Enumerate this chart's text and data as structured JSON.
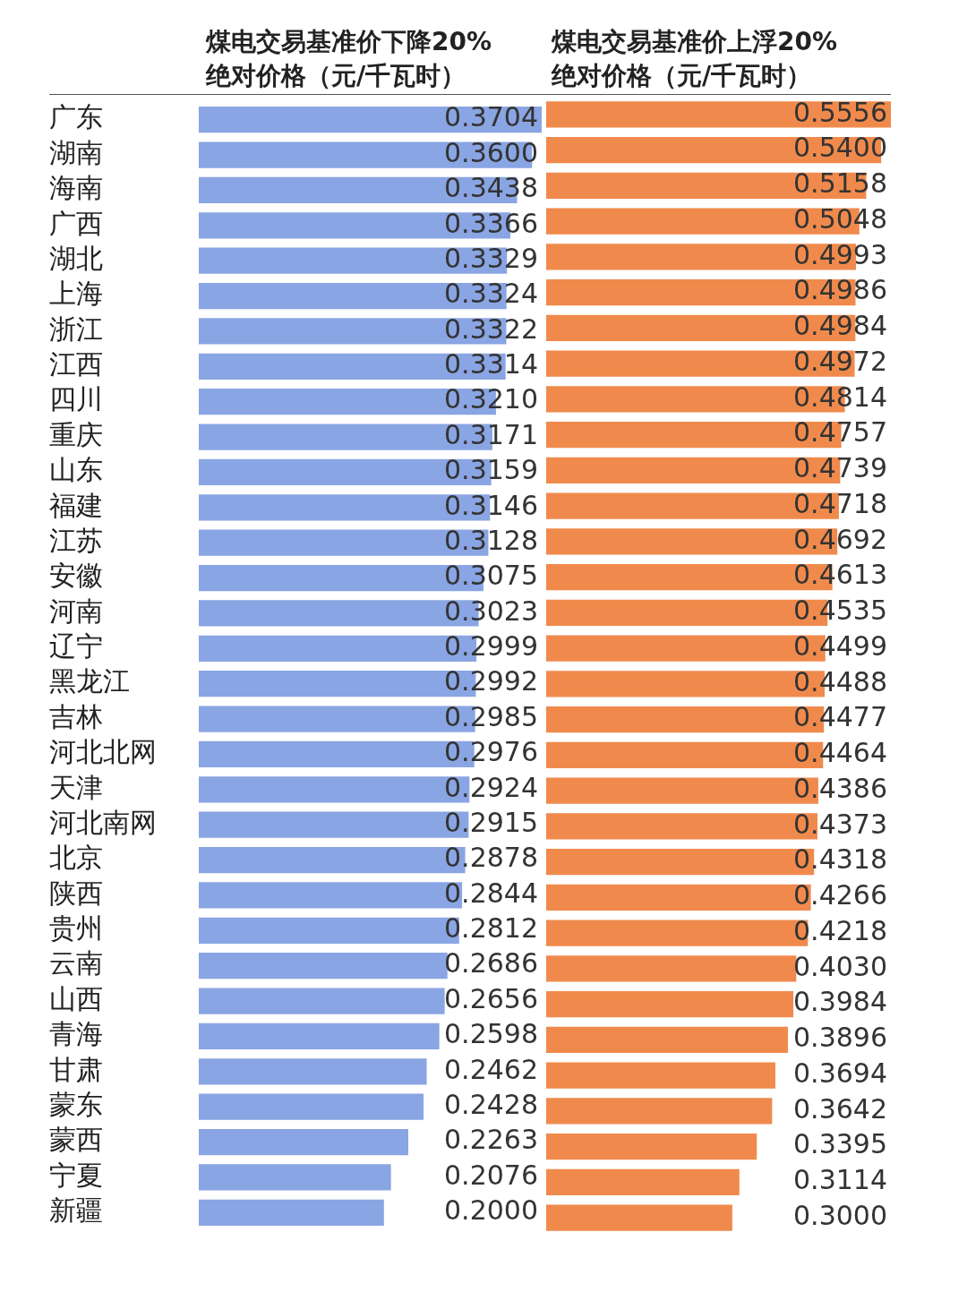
{
  "chart_data": [
    {
      "type": "bar",
      "orientation": "horizontal",
      "title": "煤电交易基准价下降20%\n绝对价格（元/千瓦时）",
      "color": "#8aa5e3",
      "categories": [
        "广东",
        "湖南",
        "海南",
        "广西",
        "湖北",
        "上海",
        "浙江",
        "江西",
        "四川",
        "重庆",
        "山东",
        "福建",
        "江苏",
        "安徽",
        "河南",
        "辽宁",
        "黑龙江",
        "吉林",
        "河北北网",
        "天津",
        "河北南网",
        "北京",
        "陕西",
        "贵州",
        "云南",
        "山西",
        "青海",
        "甘肃",
        "蒙东",
        "蒙西",
        "宁夏",
        "新疆"
      ],
      "values": [
        0.3704,
        0.36,
        0.3438,
        0.3366,
        0.3329,
        0.3324,
        0.3322,
        0.3314,
        0.321,
        0.3171,
        0.3159,
        0.3146,
        0.3128,
        0.3075,
        0.3023,
        0.2999,
        0.2992,
        0.2985,
        0.2976,
        0.2924,
        0.2915,
        0.2878,
        0.2844,
        0.2812,
        0.2686,
        0.2656,
        0.2598,
        0.2462,
        0.2428,
        0.2263,
        0.2076,
        0.2
      ],
      "value_labels": [
        "0.3704",
        "0.3600",
        "0.3438",
        "0.3366",
        "0.3329",
        "0.3324",
        "0.3322",
        "0.3314",
        "0.3210",
        "0.3171",
        "0.3159",
        "0.3146",
        "0.3128",
        "0.3075",
        "0.3023",
        "0.2999",
        "0.2992",
        "0.2985",
        "0.2976",
        "0.2924",
        "0.2915",
        "0.2878",
        "0.2844",
        "0.2812",
        "0.2686",
        "0.2656",
        "0.2598",
        "0.2462",
        "0.2428",
        "0.2263",
        "0.2076",
        "0.2000"
      ]
    },
    {
      "type": "bar",
      "orientation": "horizontal",
      "title": "煤电交易基准价上浮20%\n绝对价格（元/千瓦时）",
      "color": "#f08a4c",
      "tick_labels": false,
      "values": [
        0.5556,
        0.54,
        0.5158,
        0.5048,
        0.4993,
        0.4986,
        0.4984,
        0.4972,
        0.4814,
        0.4757,
        0.4739,
        0.4718,
        0.4692,
        0.4613,
        0.4535,
        0.4499,
        0.4488,
        0.4477,
        0.4464,
        0.4386,
        0.4373,
        0.4318,
        0.4266,
        0.4218,
        0.403,
        0.3984,
        0.3896,
        0.3694,
        0.3642,
        0.3395,
        0.3114,
        0.3
      ],
      "value_labels": [
        "0.5556",
        "0.5400",
        "0.5158",
        "0.5048",
        "0.4993",
        "0.4986",
        "0.4984",
        "0.4972",
        "0.4814",
        "0.4757",
        "0.4739",
        "0.4718",
        "0.4692",
        "0.4613",
        "0.4535",
        "0.4499",
        "0.4488",
        "0.4477",
        "0.4464",
        "0.4386",
        "0.4373",
        "0.4318",
        "0.4266",
        "0.4218",
        "0.4030",
        "0.3984",
        "0.3896",
        "0.3694",
        "0.3642",
        "0.3395",
        "0.3114",
        "0.3000"
      ]
    }
  ]
}
